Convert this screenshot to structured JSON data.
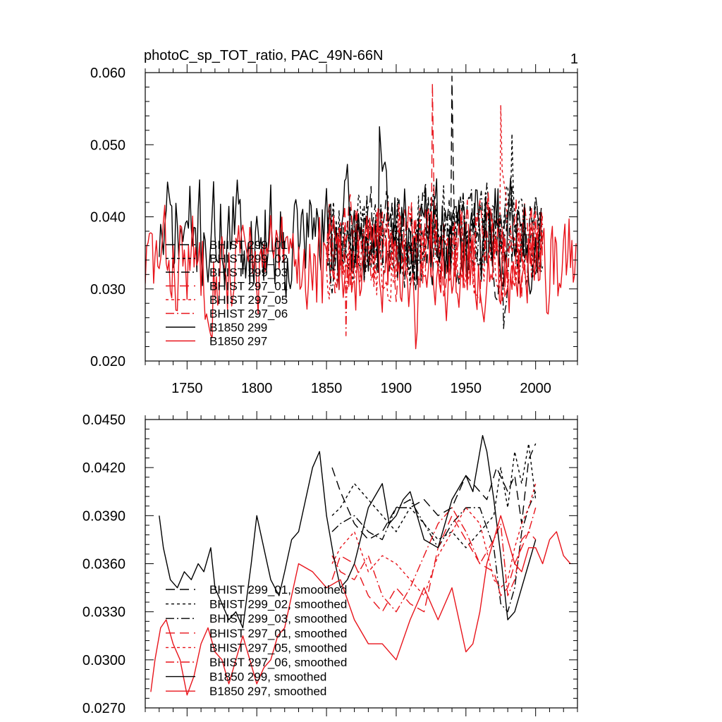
{
  "figure": {
    "page_number": "1"
  },
  "chart_data": [
    {
      "type": "line",
      "title": "photoC_sp_TOT_ratio, PAC_49N-66N",
      "xlabel": "",
      "ylabel": "",
      "xlim": [
        1720,
        2030
      ],
      "ylim": [
        0.02,
        0.06
      ],
      "x_ticks": [
        1750,
        1800,
        1850,
        1900,
        1950,
        2000
      ],
      "x_tick_labels": [
        "1750",
        "1800",
        "1850",
        "1900",
        "1950",
        "2000"
      ],
      "y_ticks": [
        0.02,
        0.03,
        0.04,
        0.05,
        0.06
      ],
      "y_tick_labels": [
        "0.020",
        "0.030",
        "0.040",
        "0.050",
        "0.060"
      ],
      "legend_position": "lower-left",
      "series": [
        {
          "name": "BHIST 299_01",
          "color": "#000000",
          "dash": "long-dash",
          "x_start": 1850,
          "x_end": 2005,
          "mean": 0.037,
          "amplitude": 0.0055,
          "seed": 11,
          "spike_year": 1940,
          "spike_value": 0.0595
        },
        {
          "name": "BHIST 299_02",
          "color": "#000000",
          "dash": "short-dash",
          "x_start": 1850,
          "x_end": 2005,
          "mean": 0.0375,
          "amplitude": 0.0055,
          "seed": 23,
          "spike_year": 1983,
          "spike_value": 0.0515
        },
        {
          "name": "BHIST 299_03",
          "color": "#000000",
          "dash": "dash-dot",
          "x_start": 1850,
          "x_end": 2005,
          "mean": 0.0375,
          "amplitude": 0.0055,
          "seed": 37,
          "spike_year": 1977,
          "spike_value": 0.0245
        },
        {
          "name": "BHIST 297_01",
          "color": "#e8141b",
          "dash": "long-dash",
          "x_start": 1850,
          "x_end": 2005,
          "mean": 0.0355,
          "amplitude": 0.0055,
          "seed": 41,
          "spike_year": 1926,
          "spike_value": 0.0585
        },
        {
          "name": "BHIST 297_05",
          "color": "#e8141b",
          "dash": "short-dash",
          "x_start": 1850,
          "x_end": 2005,
          "mean": 0.0355,
          "amplitude": 0.0055,
          "seed": 53,
          "spike_year": 1975,
          "spike_value": 0.0555
        },
        {
          "name": "BHIST 297_06",
          "color": "#e8141b",
          "dash": "dash-dot",
          "x_start": 1850,
          "x_end": 2005,
          "mean": 0.0355,
          "amplitude": 0.0055,
          "seed": 61,
          "spike_year": 1864,
          "spike_value": 0.0235
        },
        {
          "name": "B1850 299",
          "color": "#000000",
          "dash": "solid",
          "x_start": 1730,
          "x_end": 2004,
          "mean": 0.0375,
          "amplitude": 0.0065,
          "seed": 71,
          "spike_year": 1888,
          "spike_value": 0.0525
        },
        {
          "name": "B1850 297",
          "color": "#e8141b",
          "dash": "solid",
          "x_start": 1720,
          "x_end": 2029,
          "mean": 0.0335,
          "amplitude": 0.006,
          "seed": 83,
          "spike_year": 1914,
          "spike_value": 0.0217
        }
      ]
    },
    {
      "type": "line",
      "title": "",
      "xlabel": "",
      "ylabel": "",
      "xlim": [
        1720,
        2030
      ],
      "ylim": [
        0.027,
        0.045
      ],
      "x_ticks": [
        1750,
        1800,
        1850,
        1900,
        1950,
        2000
      ],
      "y_ticks": [
        0.027,
        0.03,
        0.033,
        0.036,
        0.039,
        0.042,
        0.045
      ],
      "y_tick_labels": [
        "0.0270",
        "0.0300",
        "0.0330",
        "0.0360",
        "0.0390",
        "0.0420",
        "0.0450"
      ],
      "legend_position": "lower-left",
      "series": [
        {
          "name": "BHIST 299_01, smoothed",
          "color": "#000000",
          "dash": "long-dash",
          "x": [
            1854,
            1860,
            1870,
            1880,
            1890,
            1900,
            1910,
            1920,
            1930,
            1940,
            1950,
            1960,
            1965,
            1972,
            1980,
            1985,
            1990,
            1995,
            2000
          ],
          "y": [
            0.042,
            0.0405,
            0.0385,
            0.0375,
            0.038,
            0.0395,
            0.0395,
            0.04,
            0.039,
            0.0395,
            0.0415,
            0.0405,
            0.04,
            0.042,
            0.0405,
            0.0415,
            0.0385,
            0.0425,
            0.0435
          ]
        },
        {
          "name": "BHIST 299_02, smoothed",
          "color": "#000000",
          "dash": "short-dash",
          "x": [
            1854,
            1860,
            1870,
            1880,
            1890,
            1900,
            1910,
            1920,
            1930,
            1940,
            1950,
            1960,
            1970,
            1975,
            1980,
            1985,
            1990,
            1995,
            2000
          ],
          "y": [
            0.039,
            0.0395,
            0.041,
            0.04,
            0.039,
            0.038,
            0.0395,
            0.0385,
            0.0375,
            0.038,
            0.037,
            0.038,
            0.039,
            0.042,
            0.0395,
            0.043,
            0.041,
            0.0435,
            0.04
          ]
        },
        {
          "name": "BHIST 299_03, smoothed",
          "color": "#000000",
          "dash": "dash-dot",
          "x": [
            1854,
            1860,
            1870,
            1880,
            1890,
            1900,
            1910,
            1920,
            1930,
            1940,
            1950,
            1960,
            1970,
            1975,
            1980,
            1985,
            1990,
            1995,
            2000
          ],
          "y": [
            0.038,
            0.0385,
            0.039,
            0.038,
            0.0375,
            0.0395,
            0.04,
            0.0385,
            0.037,
            0.0385,
            0.0395,
            0.0395,
            0.037,
            0.0335,
            0.033,
            0.0345,
            0.038,
            0.0395,
            0.0405
          ]
        },
        {
          "name": "BHIST 297_01, smoothed",
          "color": "#e8141b",
          "dash": "long-dash",
          "x": [
            1854,
            1860,
            1870,
            1880,
            1890,
            1900,
            1910,
            1920,
            1930,
            1940,
            1950,
            1960,
            1970,
            1975,
            1980,
            1985,
            1990,
            1995,
            2000
          ],
          "y": [
            0.035,
            0.0365,
            0.036,
            0.034,
            0.033,
            0.0345,
            0.0335,
            0.033,
            0.037,
            0.039,
            0.0375,
            0.036,
            0.0355,
            0.034,
            0.0345,
            0.036,
            0.037,
            0.038,
            0.0375
          ]
        },
        {
          "name": "BHIST 297_05, smoothed",
          "color": "#e8141b",
          "dash": "short-dash",
          "x": [
            1854,
            1860,
            1870,
            1880,
            1890,
            1900,
            1910,
            1920,
            1930,
            1940,
            1950,
            1960,
            1970,
            1975,
            1980,
            1985,
            1990,
            1995,
            2000
          ],
          "y": [
            0.036,
            0.037,
            0.038,
            0.0355,
            0.0365,
            0.036,
            0.035,
            0.034,
            0.0365,
            0.038,
            0.0395,
            0.0385,
            0.035,
            0.0345,
            0.035,
            0.037,
            0.0385,
            0.0395,
            0.041
          ]
        },
        {
          "name": "BHIST 297_06, smoothed",
          "color": "#e8141b",
          "dash": "dash-dot",
          "x": [
            1854,
            1860,
            1870,
            1880,
            1890,
            1900,
            1910,
            1920,
            1930,
            1940,
            1950,
            1960,
            1970,
            1975,
            1980,
            1985,
            1990,
            1995,
            2000
          ],
          "y": [
            0.0365,
            0.0355,
            0.035,
            0.0365,
            0.034,
            0.033,
            0.0345,
            0.0365,
            0.0385,
            0.0395,
            0.038,
            0.036,
            0.0375,
            0.0385,
            0.034,
            0.035,
            0.0375,
            0.038,
            0.0395
          ]
        },
        {
          "name": "B1850 299, smoothed",
          "color": "#000000",
          "dash": "solid",
          "x": [
            1730,
            1733,
            1738,
            1743,
            1748,
            1753,
            1758,
            1762,
            1767,
            1770,
            1775,
            1780,
            1785,
            1790,
            1796,
            1800,
            1805,
            1810,
            1816,
            1820,
            1825,
            1830,
            1835,
            1840,
            1845,
            1850,
            1855,
            1860,
            1865,
            1870,
            1880,
            1890,
            1895,
            1900,
            1905,
            1910,
            1915,
            1920,
            1930,
            1940,
            1950,
            1955,
            1962,
            1965,
            1970,
            1975,
            1980,
            1985,
            1990,
            1995,
            2000
          ],
          "y": [
            0.039,
            0.037,
            0.035,
            0.0345,
            0.0355,
            0.035,
            0.036,
            0.0355,
            0.037,
            0.0345,
            0.0335,
            0.0325,
            0.033,
            0.032,
            0.036,
            0.039,
            0.037,
            0.035,
            0.034,
            0.0355,
            0.0375,
            0.038,
            0.04,
            0.042,
            0.043,
            0.039,
            0.0365,
            0.0345,
            0.035,
            0.036,
            0.0395,
            0.041,
            0.0385,
            0.039,
            0.04,
            0.0405,
            0.039,
            0.0375,
            0.037,
            0.04,
            0.0415,
            0.0405,
            0.044,
            0.043,
            0.04,
            0.0365,
            0.0325,
            0.033,
            0.0345,
            0.036,
            0.0375
          ]
        },
        {
          "name": "B1850 297, smoothed",
          "color": "#e8141b",
          "dash": "solid",
          "x": [
            1724,
            1727,
            1731,
            1735,
            1740,
            1745,
            1750,
            1755,
            1760,
            1765,
            1770,
            1775,
            1780,
            1785,
            1790,
            1795,
            1800,
            1805,
            1810,
            1815,
            1820,
            1825,
            1830,
            1840,
            1850,
            1860,
            1870,
            1880,
            1890,
            1900,
            1910,
            1920,
            1930,
            1940,
            1950,
            1955,
            1960,
            1965,
            1970,
            1975,
            1980,
            1985,
            1990,
            1995,
            2000,
            2005,
            2010,
            2015,
            2020,
            2025
          ],
          "y": [
            0.028,
            0.03,
            0.032,
            0.0325,
            0.031,
            0.03,
            0.0278,
            0.029,
            0.031,
            0.032,
            0.0305,
            0.03,
            0.0285,
            0.03,
            0.0315,
            0.03,
            0.0285,
            0.0295,
            0.03,
            0.0315,
            0.032,
            0.034,
            0.036,
            0.0355,
            0.0345,
            0.035,
            0.0325,
            0.031,
            0.031,
            0.03,
            0.0325,
            0.0345,
            0.0325,
            0.0345,
            0.0305,
            0.031,
            0.033,
            0.036,
            0.0375,
            0.039,
            0.0375,
            0.036,
            0.0355,
            0.037,
            0.037,
            0.036,
            0.0375,
            0.038,
            0.0365,
            0.036
          ]
        }
      ]
    }
  ]
}
